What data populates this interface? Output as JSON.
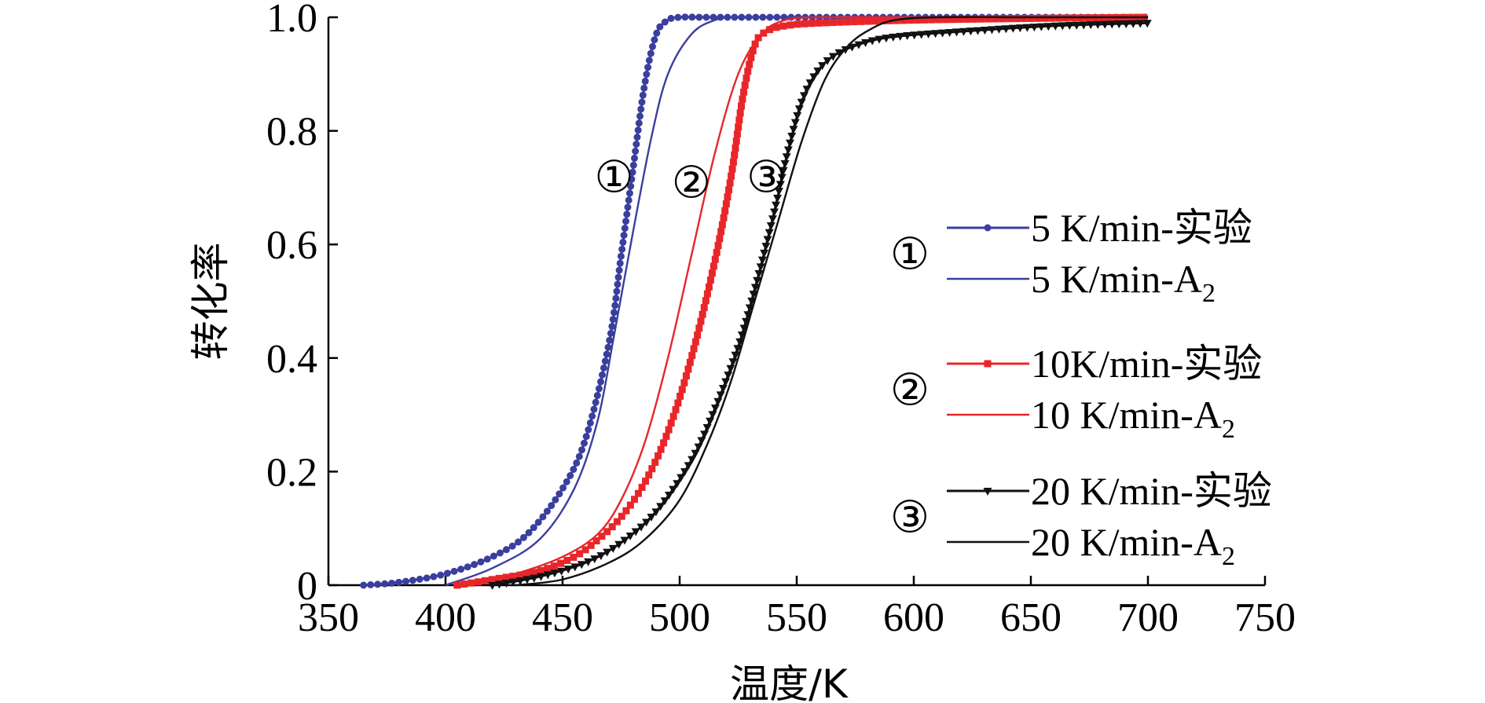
{
  "chart_data": {
    "type": "line",
    "title": "",
    "xlabel": "温度/K",
    "ylabel": "转化率",
    "xlim": [
      350,
      750
    ],
    "ylim": [
      0,
      1.0
    ],
    "x_ticks": [
      350,
      400,
      450,
      500,
      550,
      600,
      650,
      700,
      750
    ],
    "y_ticks": [
      0,
      0.2,
      0.4,
      0.6,
      0.8,
      1.0
    ],
    "x_tick_labels": [
      "350",
      "400",
      "450",
      "500",
      "550",
      "600",
      "650",
      "700",
      "750"
    ],
    "y_tick_labels": [
      "0",
      "0.2",
      "0.4",
      "0.6",
      "0.8",
      "1.0"
    ],
    "grid": false,
    "legend_position": "right",
    "curve_annotations": [
      {
        "text": "①",
        "x": 472,
        "y": 0.72
      },
      {
        "text": "②",
        "x": 505,
        "y": 0.71
      },
      {
        "text": "③",
        "x": 537,
        "y": 0.72
      }
    ],
    "legend_groups": [
      {
        "symbol": "①",
        "entries": [
          {
            "text": "5 K/min-实验",
            "sub": ""
          },
          {
            "text": "5 K/min-A",
            "sub": "2"
          }
        ]
      },
      {
        "symbol": "②",
        "entries": [
          {
            "text": "10K/min-实验",
            "sub": ""
          },
          {
            "text": "10 K/min-A",
            "sub": "2"
          }
        ]
      },
      {
        "symbol": "③",
        "entries": [
          {
            "text": "20 K/min-实验",
            "sub": ""
          },
          {
            "text": "20 K/min-A",
            "sub": "2"
          }
        ]
      }
    ],
    "series": [
      {
        "name": "5 K/min-实验",
        "color": "#3a3f9e",
        "marker": "circle",
        "style": "exp",
        "x": [
          365,
          380,
          400,
          420,
          435,
          450,
          460,
          470,
          475,
          480,
          485,
          490,
          495,
          500,
          510,
          520,
          550,
          600,
          650,
          700
        ],
        "y": [
          0.0,
          0.005,
          0.02,
          0.05,
          0.09,
          0.17,
          0.26,
          0.43,
          0.58,
          0.73,
          0.88,
          0.97,
          0.995,
          1.0,
          1.0,
          1.0,
          1.0,
          1.0,
          1.0,
          1.0
        ]
      },
      {
        "name": "5 K/min-A2",
        "color": "#3a3f9e",
        "marker": "none",
        "style": "model",
        "x": [
          400,
          420,
          440,
          455,
          465,
          472,
          480,
          488,
          495,
          505,
          515,
          525,
          550,
          600,
          700
        ],
        "y": [
          0.0,
          0.03,
          0.08,
          0.17,
          0.29,
          0.44,
          0.62,
          0.79,
          0.9,
          0.97,
          0.995,
          1.0,
          1.0,
          1.0,
          1.0
        ]
      },
      {
        "name": "10K/min-实验",
        "color": "#e8262a",
        "marker": "square",
        "style": "exp",
        "x": [
          405,
          420,
          440,
          455,
          465,
          475,
          485,
          495,
          505,
          515,
          522,
          527,
          532,
          537,
          545,
          560,
          600,
          650,
          700
        ],
        "y": [
          0.0,
          0.01,
          0.025,
          0.05,
          0.08,
          0.12,
          0.18,
          0.27,
          0.4,
          0.57,
          0.72,
          0.86,
          0.95,
          0.975,
          0.985,
          0.99,
          0.995,
          0.998,
          1.0
        ]
      },
      {
        "name": "10 K/min-A2",
        "color": "#e8262a",
        "marker": "none",
        "style": "model",
        "x": [
          410,
          430,
          450,
          465,
          475,
          485,
          495,
          505,
          515,
          525,
          535,
          545,
          560,
          600,
          700
        ],
        "y": [
          0.0,
          0.02,
          0.05,
          0.09,
          0.15,
          0.25,
          0.4,
          0.58,
          0.76,
          0.9,
          0.97,
          0.995,
          1.0,
          1.0,
          1.0
        ]
      },
      {
        "name": "20 K/min-实验",
        "color": "#111111",
        "marker": "triangle-down",
        "style": "exp",
        "x": [
          420,
          440,
          460,
          475,
          490,
          505,
          515,
          525,
          532,
          540,
          546,
          552,
          558,
          565,
          575,
          590,
          620,
          660,
          700
        ],
        "y": [
          0.0,
          0.015,
          0.04,
          0.075,
          0.13,
          0.22,
          0.31,
          0.42,
          0.52,
          0.65,
          0.76,
          0.85,
          0.9,
          0.93,
          0.95,
          0.965,
          0.975,
          0.985,
          0.99
        ]
      },
      {
        "name": "20 K/min-A2",
        "color": "#111111",
        "marker": "none",
        "style": "model",
        "x": [
          430,
          450,
          470,
          485,
          500,
          512,
          522,
          532,
          542,
          552,
          562,
          572,
          582,
          592,
          610,
          650,
          700
        ],
        "y": [
          0.0,
          0.01,
          0.04,
          0.08,
          0.15,
          0.25,
          0.36,
          0.5,
          0.64,
          0.78,
          0.89,
          0.95,
          0.98,
          0.995,
          1.0,
          1.0,
          1.0
        ]
      }
    ]
  }
}
